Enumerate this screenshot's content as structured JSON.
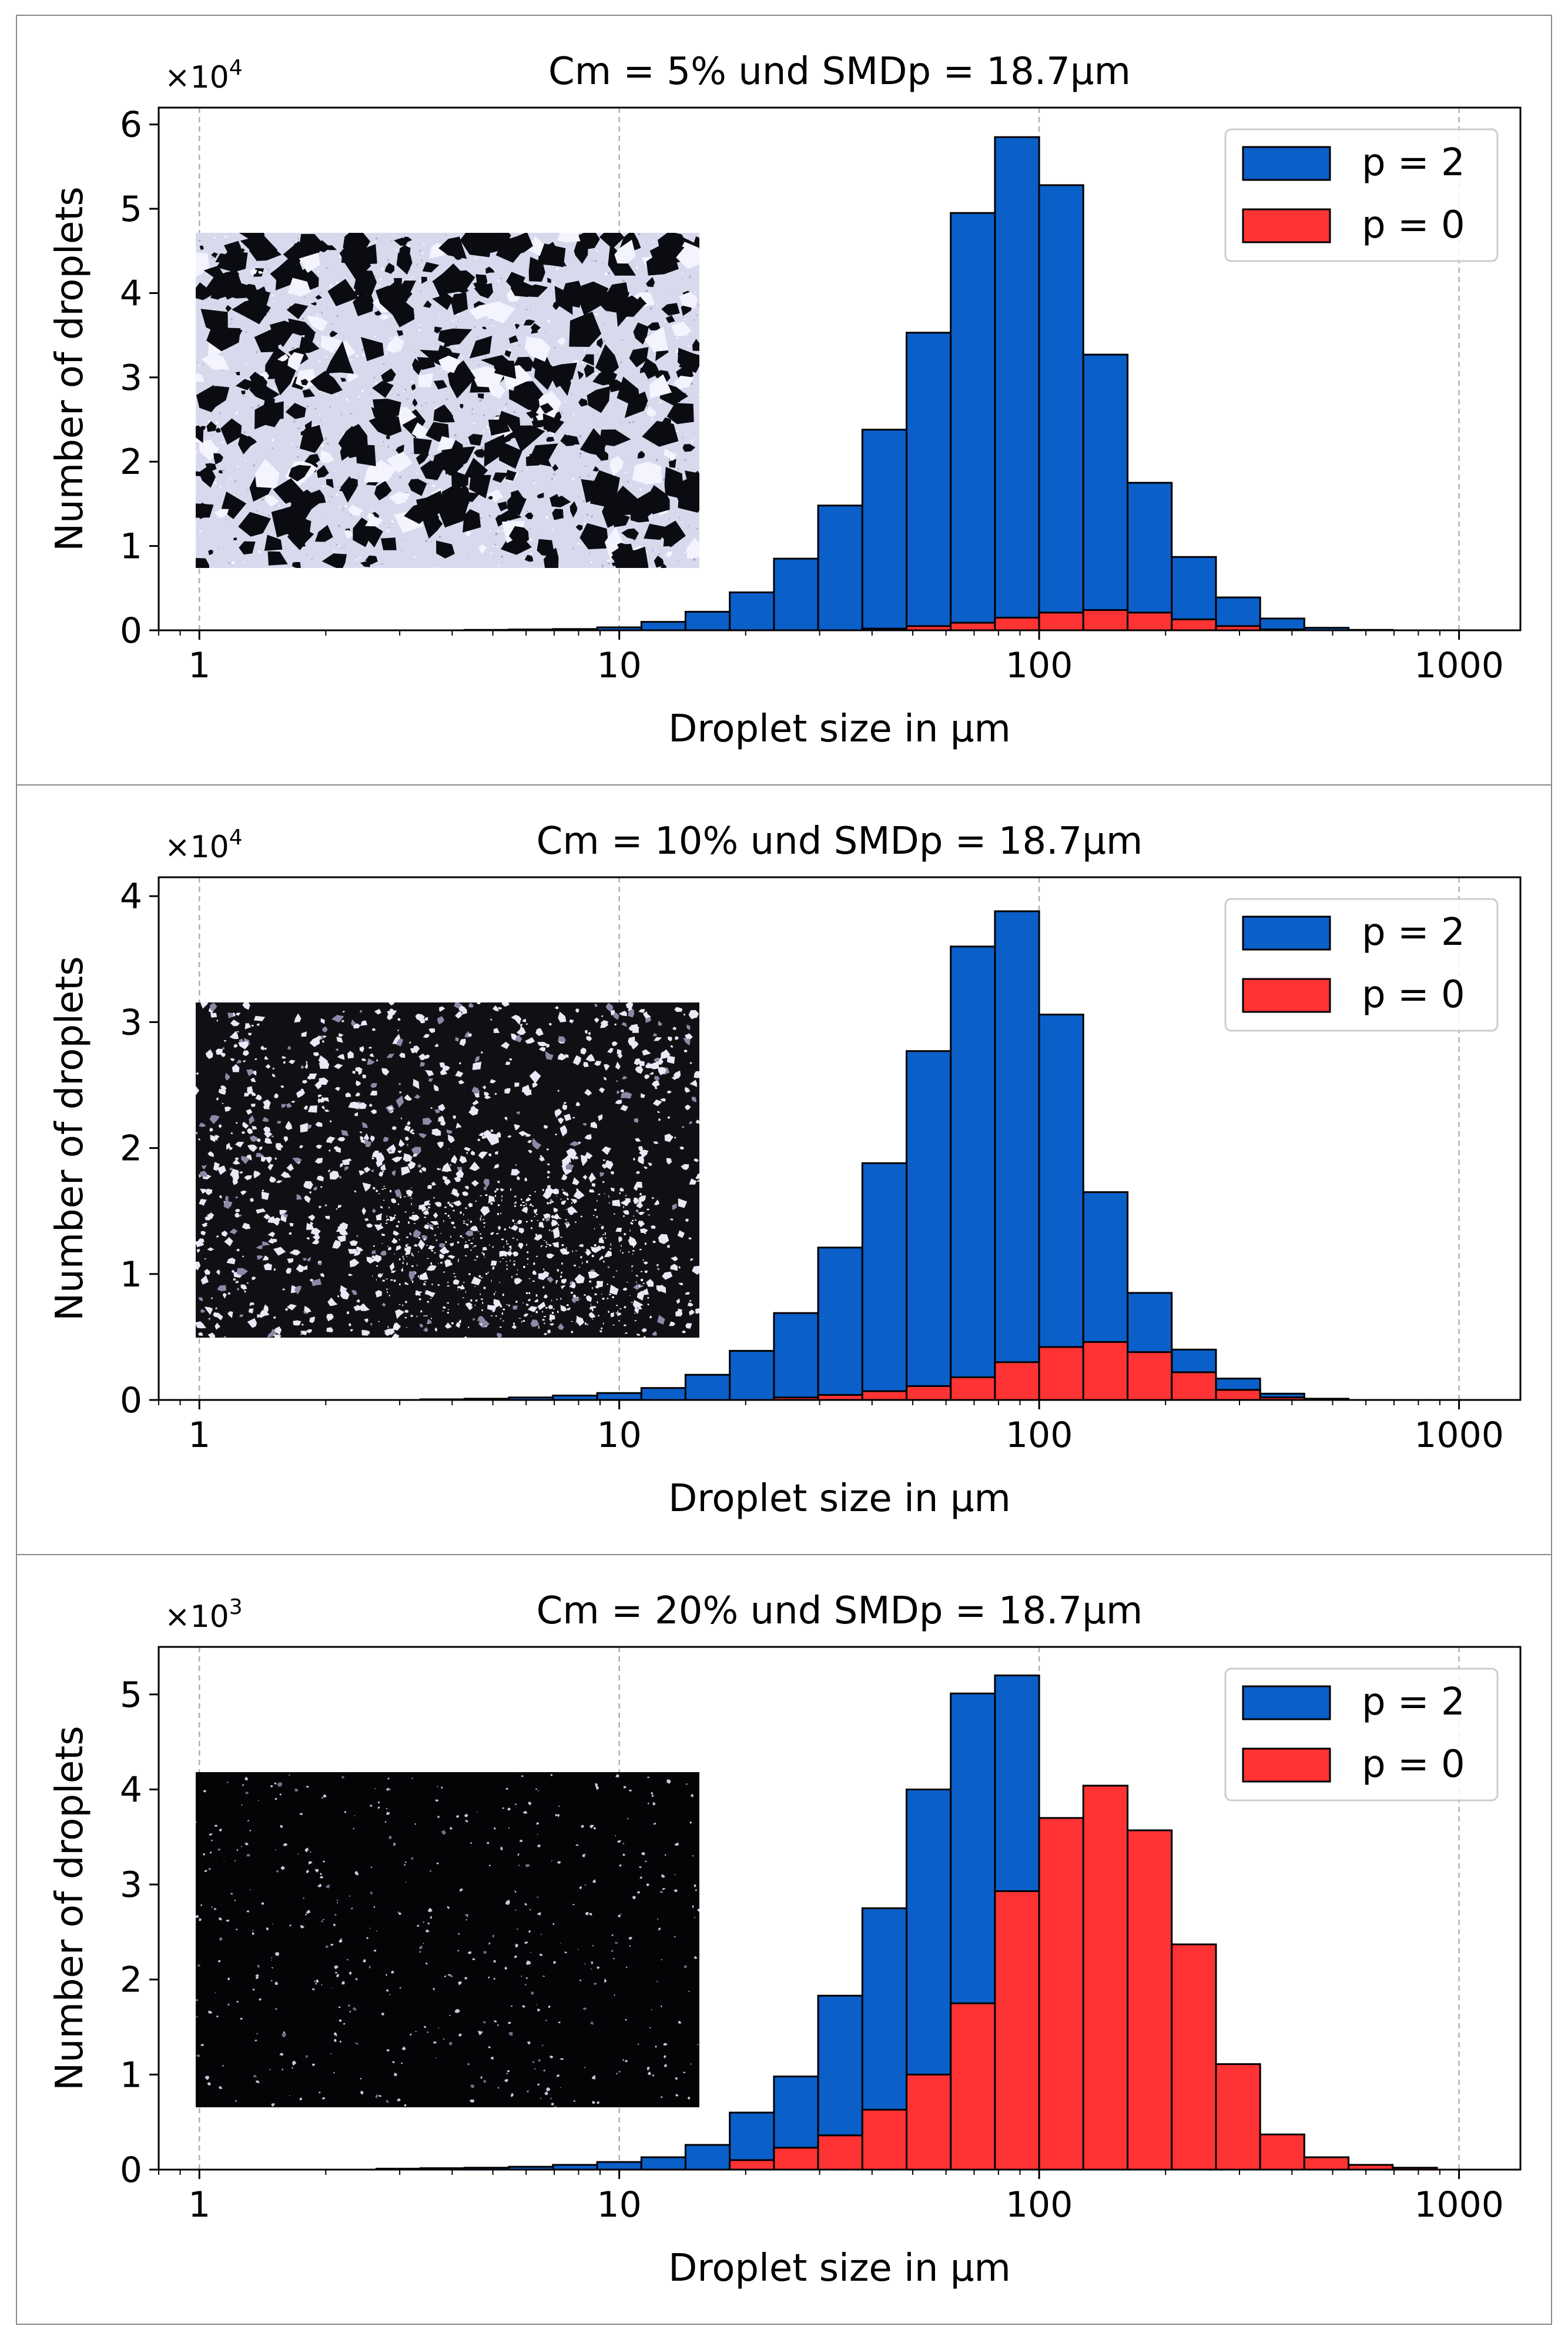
{
  "figure": {
    "xlabel": "Droplet size in µm",
    "ylabel": "Number of droplets",
    "xticks": [
      1,
      10,
      100,
      1000
    ],
    "xtick_labels": [
      "1",
      "10",
      "100",
      "1000"
    ]
  },
  "chart_data": [
    {
      "type": "bar",
      "title": "Cm = 5% und SMDp = 18.7µm",
      "xscale": "log",
      "xlim": [
        0.8,
        1400
      ],
      "ylim": [
        0,
        62000
      ],
      "yticks": [
        0,
        10000,
        20000,
        30000,
        40000,
        50000,
        60000
      ],
      "ytick_labels": [
        "0",
        "1",
        "2",
        "3",
        "4",
        "5",
        "6"
      ],
      "y_multiplier": "×10",
      "y_multiplier_exp": "4",
      "xlabel": "Droplet size in µm",
      "ylabel": "Number of droplets",
      "legend_position": "top-right",
      "bin_edges": [
        1.0,
        1.27,
        1.62,
        2.06,
        2.64,
        3.36,
        4.28,
        5.46,
        6.95,
        8.86,
        11.29,
        14.38,
        18.33,
        23.36,
        29.76,
        37.93,
        48.33,
        61.58,
        78.48,
        100.0,
        127.4,
        162.4,
        206.9,
        263.7,
        336.0,
        428.1,
        545.6,
        695.2,
        885.9,
        1128.8
      ],
      "series": [
        {
          "name": "p = 2",
          "color": "#0a5fc9",
          "values": [
            0,
            0,
            0,
            0,
            0,
            0,
            50,
            100,
            150,
            350,
            1000,
            2200,
            4500,
            8500,
            14800,
            23800,
            35300,
            49500,
            58500,
            52800,
            32700,
            17500,
            8700,
            3900,
            1400,
            300,
            50,
            0,
            0
          ]
        },
        {
          "name": "p = 0",
          "color": "#ff3333",
          "values": [
            0,
            0,
            0,
            0,
            0,
            0,
            0,
            0,
            0,
            0,
            0,
            0,
            0,
            0,
            0,
            200,
            500,
            900,
            1500,
            2100,
            2400,
            2100,
            1300,
            500,
            100,
            0,
            0,
            0,
            0
          ]
        }
      ],
      "inset": {
        "label": "micrograph",
        "style": "light",
        "seed": 11
      }
    },
    {
      "type": "bar",
      "title": "Cm = 10% und SMDp = 18.7µm",
      "xscale": "log",
      "xlim": [
        0.8,
        1400
      ],
      "ylim": [
        0,
        41500
      ],
      "yticks": [
        0,
        10000,
        20000,
        30000,
        40000
      ],
      "ytick_labels": [
        "0",
        "1",
        "2",
        "3",
        "4"
      ],
      "y_multiplier": "×10",
      "y_multiplier_exp": "4",
      "xlabel": "Droplet size in µm",
      "ylabel": "Number of droplets",
      "legend_position": "top-right",
      "bin_edges": [
        1.0,
        1.27,
        1.62,
        2.06,
        2.64,
        3.36,
        4.28,
        5.46,
        6.95,
        8.86,
        11.29,
        14.38,
        18.33,
        23.36,
        29.76,
        37.93,
        48.33,
        61.58,
        78.48,
        100.0,
        127.4,
        162.4,
        206.9,
        263.7,
        336.0,
        428.1,
        545.6,
        695.2,
        885.9,
        1128.8
      ],
      "series": [
        {
          "name": "p = 2",
          "color": "#0a5fc9",
          "values": [
            0,
            0,
            0,
            0,
            0,
            50,
            100,
            200,
            350,
            550,
            950,
            2000,
            3900,
            6900,
            12100,
            18800,
            27700,
            36000,
            38800,
            30600,
            16500,
            8500,
            4000,
            1700,
            500,
            100,
            0,
            0,
            0
          ]
        },
        {
          "name": "p = 0",
          "color": "#ff3333",
          "values": [
            0,
            0,
            0,
            0,
            0,
            0,
            0,
            0,
            0,
            0,
            0,
            0,
            0,
            200,
            400,
            700,
            1100,
            1800,
            3000,
            4200,
            4600,
            3800,
            2200,
            800,
            200,
            0,
            0,
            0,
            0
          ]
        }
      ],
      "inset": {
        "label": "micrograph",
        "style": "dark",
        "seed": 23
      }
    },
    {
      "type": "bar",
      "title": "Cm = 20% und SMDp = 18.7µm",
      "xscale": "log",
      "xlim": [
        0.8,
        1400
      ],
      "ylim": [
        0,
        5500
      ],
      "yticks": [
        0,
        1000,
        2000,
        3000,
        4000,
        5000
      ],
      "ytick_labels": [
        "0",
        "1",
        "2",
        "3",
        "4",
        "5"
      ],
      "y_multiplier": "×10",
      "y_multiplier_exp": "3",
      "xlabel": "Droplet size in µm",
      "ylabel": "Number of droplets",
      "legend_position": "top-right",
      "bin_edges": [
        1.0,
        1.27,
        1.62,
        2.06,
        2.64,
        3.36,
        4.28,
        5.46,
        6.95,
        8.86,
        11.29,
        14.38,
        18.33,
        23.36,
        29.76,
        37.93,
        48.33,
        61.58,
        78.48,
        100.0,
        127.4,
        162.4,
        206.9,
        263.7,
        336.0,
        428.1,
        545.6,
        695.2,
        885.9,
        1128.8
      ],
      "series": [
        {
          "name": "p = 2",
          "color": "#0a5fc9",
          "values": [
            0,
            0,
            0,
            0,
            10,
            15,
            20,
            30,
            50,
            80,
            130,
            260,
            600,
            980,
            1830,
            2750,
            4000,
            5010,
            5200,
            2100,
            0,
            0,
            0,
            0,
            0,
            0,
            0,
            0,
            0
          ]
        },
        {
          "name": "p = 0",
          "color": "#ff3333",
          "values": [
            0,
            0,
            0,
            0,
            0,
            0,
            0,
            0,
            0,
            0,
            0,
            0,
            100,
            230,
            360,
            630,
            1000,
            1750,
            2930,
            3700,
            4040,
            3570,
            2370,
            1110,
            370,
            130,
            50,
            20,
            0
          ]
        }
      ],
      "inset": {
        "label": "micrograph",
        "style": "black",
        "seed": 37
      }
    }
  ]
}
